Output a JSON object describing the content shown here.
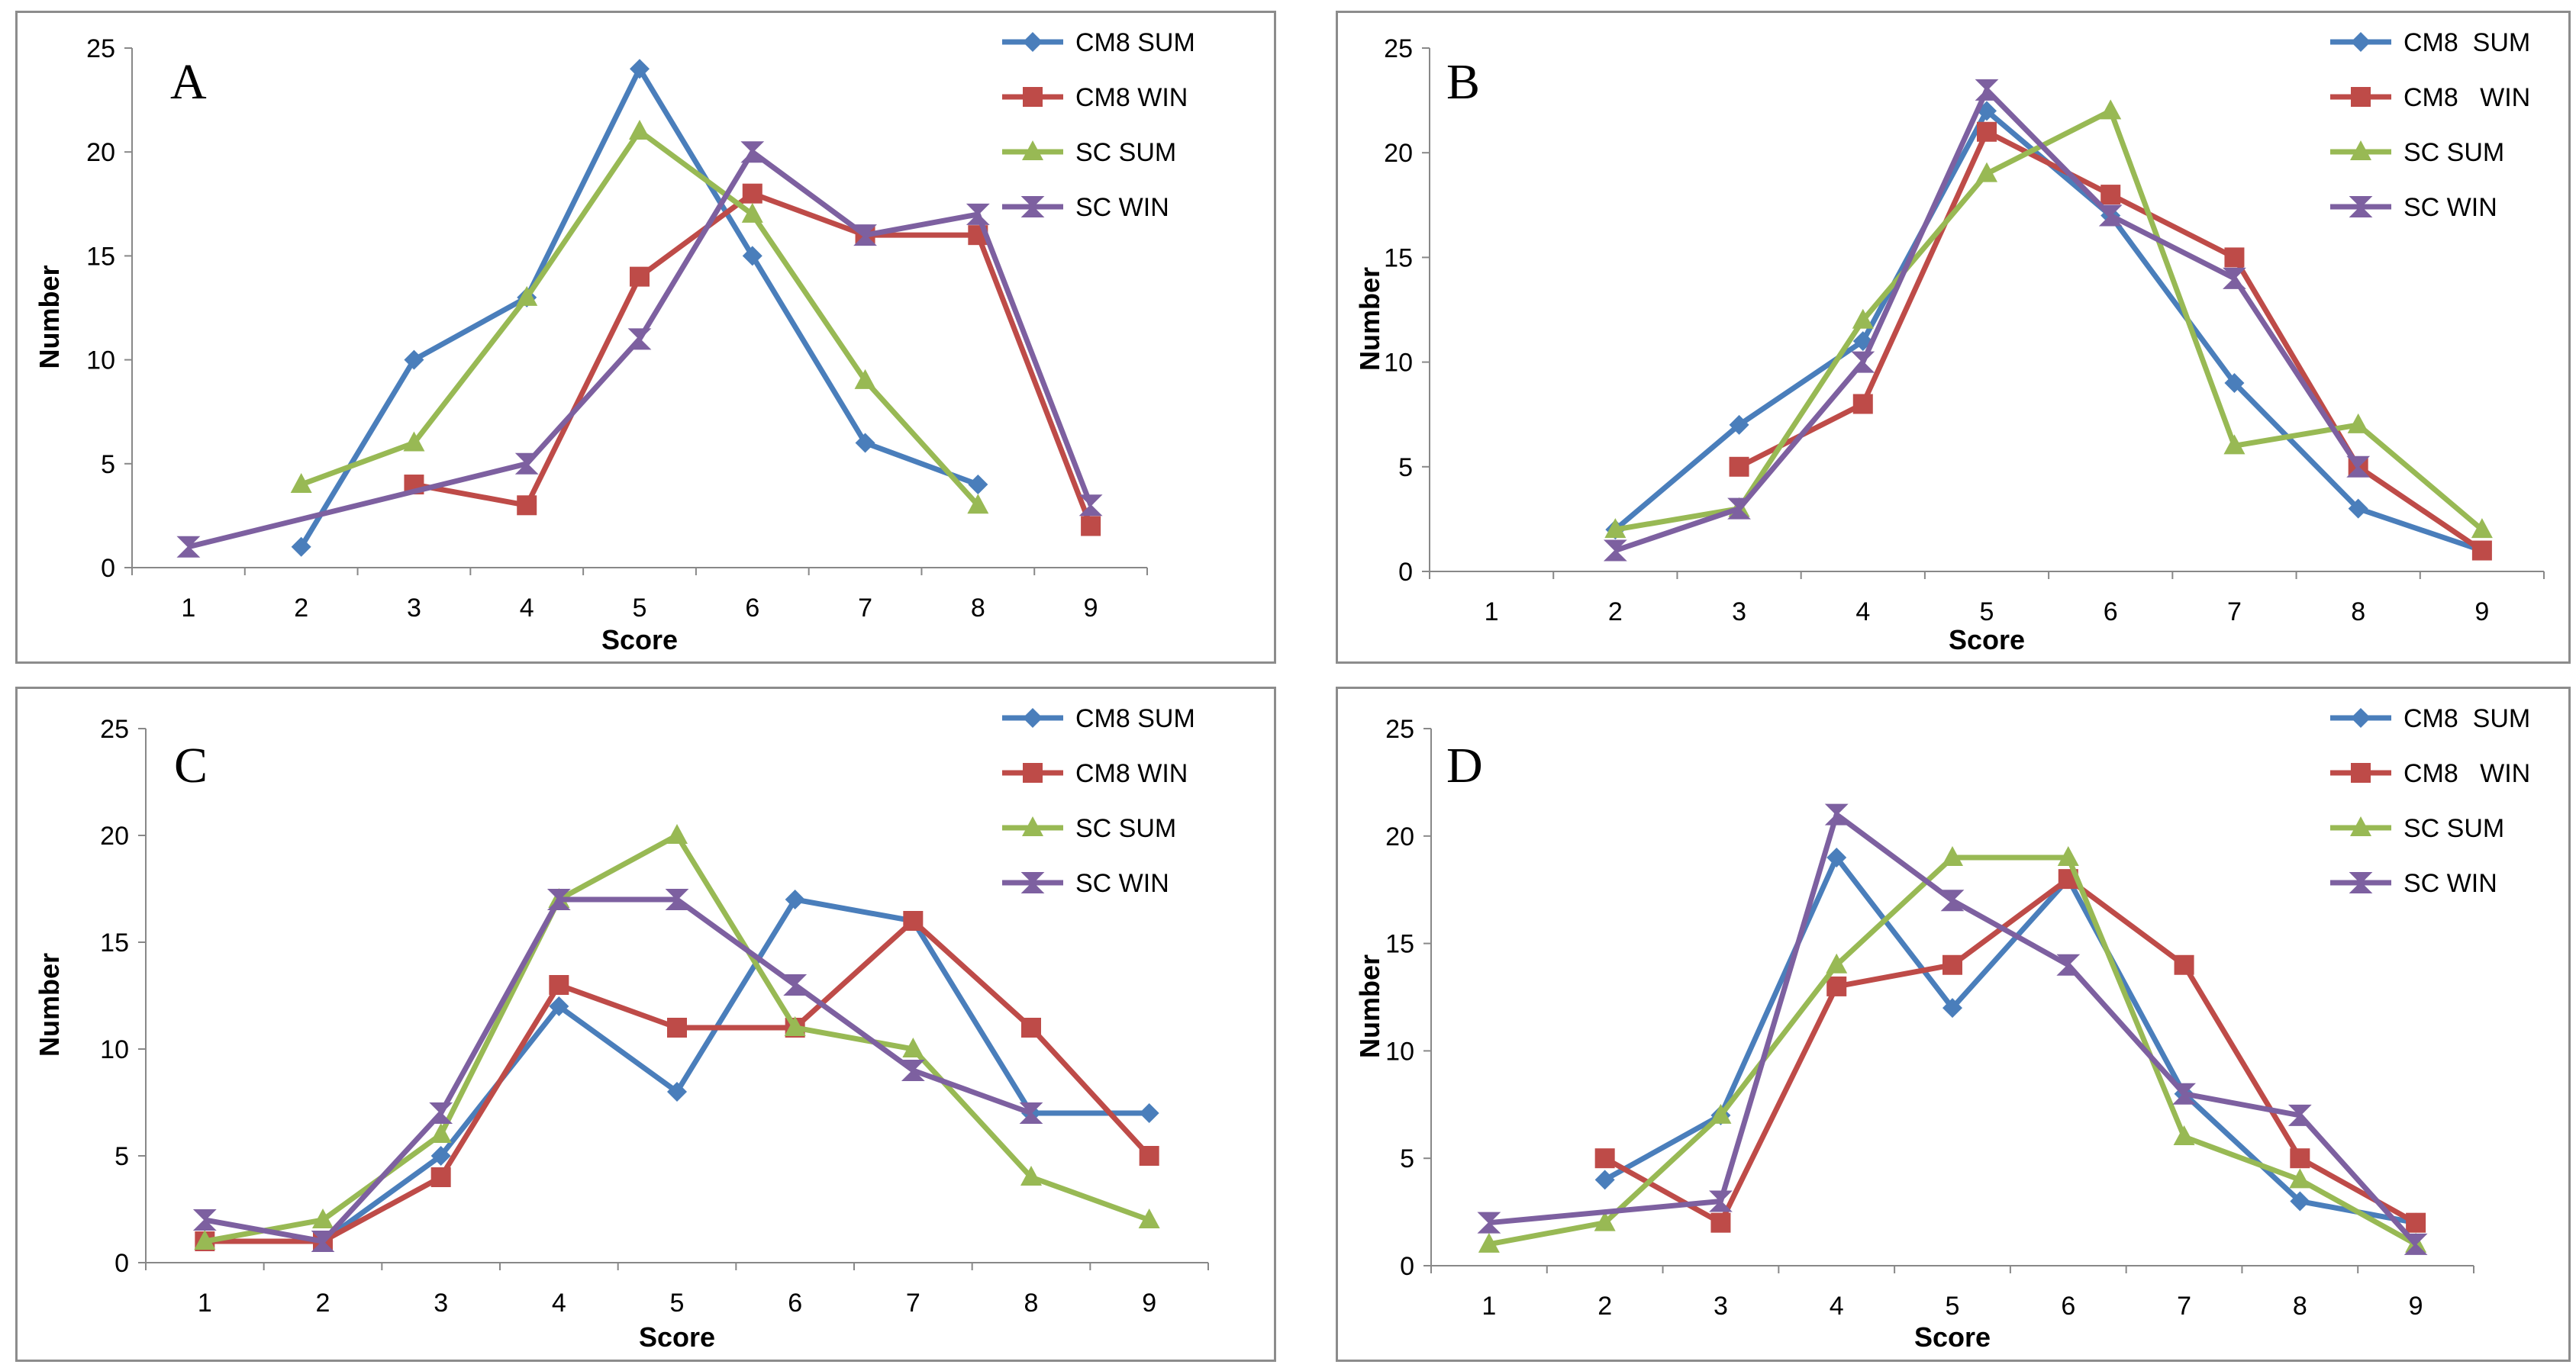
{
  "chart_data": [
    {
      "type": "line",
      "panel_label": "A",
      "xlabel": "Score",
      "ylabel": "Number",
      "ylim": [
        0,
        25
      ],
      "yticks": [
        0,
        5,
        10,
        15,
        20,
        25
      ],
      "categories": [
        "1",
        "2",
        "3",
        "4",
        "5",
        "6",
        "7",
        "8",
        "9"
      ],
      "legend_position": "top-right",
      "series": [
        {
          "name": "CM8 SUM",
          "color": "#4a7ebb",
          "marker": "diamond",
          "points": [
            {
              "x": 2,
              "y": 1
            },
            {
              "x": 3,
              "y": 10
            },
            {
              "x": 4,
              "y": 13
            },
            {
              "x": 5,
              "y": 24
            },
            {
              "x": 6,
              "y": 15
            },
            {
              "x": 7,
              "y": 6
            },
            {
              "x": 8,
              "y": 4
            }
          ]
        },
        {
          "name": "CM8 WIN",
          "color": "#be4b48",
          "marker": "square",
          "points": [
            {
              "x": 3,
              "y": 4
            },
            {
              "x": 4,
              "y": 3
            },
            {
              "x": 5,
              "y": 14
            },
            {
              "x": 6,
              "y": 18
            },
            {
              "x": 7,
              "y": 16
            },
            {
              "x": 8,
              "y": 16
            },
            {
              "x": 9,
              "y": 2
            }
          ]
        },
        {
          "name": "SC SUM",
          "color": "#98b954",
          "marker": "triangle",
          "points": [
            {
              "x": 2,
              "y": 4
            },
            {
              "x": 3,
              "y": 6
            },
            {
              "x": 4,
              "y": 13
            },
            {
              "x": 5,
              "y": 21
            },
            {
              "x": 6,
              "y": 17
            },
            {
              "x": 7,
              "y": 9
            },
            {
              "x": 8,
              "y": 3
            }
          ]
        },
        {
          "name": "SC WIN",
          "color": "#7d60a0",
          "marker": "hourglass",
          "points": [
            {
              "x": 1,
              "y": 1
            },
            {
              "x": 4,
              "y": 5
            },
            {
              "x": 5,
              "y": 11
            },
            {
              "x": 6,
              "y": 20
            },
            {
              "x": 7,
              "y": 16
            },
            {
              "x": 8,
              "y": 17
            },
            {
              "x": 9,
              "y": 3
            }
          ]
        }
      ]
    },
    {
      "type": "line",
      "panel_label": "B",
      "xlabel": "Score",
      "ylabel": "Number",
      "ylim": [
        0,
        25
      ],
      "yticks": [
        0,
        5,
        10,
        15,
        20,
        25
      ],
      "categories": [
        "1",
        "2",
        "3",
        "4",
        "5",
        "6",
        "7",
        "8",
        "9"
      ],
      "legend_position": "top-right",
      "series": [
        {
          "name": "CM8  SUM",
          "color": "#4a7ebb",
          "marker": "diamond",
          "points": [
            {
              "x": 2,
              "y": 2
            },
            {
              "x": 3,
              "y": 7
            },
            {
              "x": 4,
              "y": 11
            },
            {
              "x": 5,
              "y": 22
            },
            {
              "x": 6,
              "y": 17
            },
            {
              "x": 7,
              "y": 9
            },
            {
              "x": 8,
              "y": 3
            },
            {
              "x": 9,
              "y": 1
            }
          ]
        },
        {
          "name": "CM8   WIN",
          "color": "#be4b48",
          "marker": "square",
          "points": [
            {
              "x": 3,
              "y": 5
            },
            {
              "x": 4,
              "y": 8
            },
            {
              "x": 5,
              "y": 21
            },
            {
              "x": 6,
              "y": 18
            },
            {
              "x": 7,
              "y": 15
            },
            {
              "x": 8,
              "y": 5
            },
            {
              "x": 9,
              "y": 1
            }
          ]
        },
        {
          "name": "SC SUM",
          "color": "#98b954",
          "marker": "triangle",
          "points": [
            {
              "x": 2,
              "y": 2
            },
            {
              "x": 3,
              "y": 3
            },
            {
              "x": 4,
              "y": 12
            },
            {
              "x": 5,
              "y": 19
            },
            {
              "x": 6,
              "y": 22
            },
            {
              "x": 7,
              "y": 6
            },
            {
              "x": 8,
              "y": 7
            },
            {
              "x": 9,
              "y": 2
            }
          ]
        },
        {
          "name": "SC WIN",
          "color": "#7d60a0",
          "marker": "hourglass",
          "points": [
            {
              "x": 2,
              "y": 1
            },
            {
              "x": 3,
              "y": 3
            },
            {
              "x": 4,
              "y": 10
            },
            {
              "x": 5,
              "y": 23
            },
            {
              "x": 6,
              "y": 17
            },
            {
              "x": 7,
              "y": 14
            },
            {
              "x": 8,
              "y": 5
            }
          ]
        }
      ]
    },
    {
      "type": "line",
      "panel_label": "C",
      "xlabel": "Score",
      "ylabel": "Number",
      "ylim": [
        0,
        25
      ],
      "yticks": [
        0,
        5,
        10,
        15,
        20,
        25
      ],
      "categories": [
        "1",
        "2",
        "3",
        "4",
        "5",
        "6",
        "7",
        "8",
        "9"
      ],
      "legend_position": "top-right",
      "series": [
        {
          "name": "CM8 SUM",
          "color": "#4a7ebb",
          "marker": "diamond",
          "points": [
            {
              "x": 1,
              "y": 1
            },
            {
              "x": 2,
              "y": 1
            },
            {
              "x": 3,
              "y": 5
            },
            {
              "x": 4,
              "y": 12
            },
            {
              "x": 5,
              "y": 8
            },
            {
              "x": 6,
              "y": 17
            },
            {
              "x": 7,
              "y": 16
            },
            {
              "x": 8,
              "y": 7
            },
            {
              "x": 9,
              "y": 7
            }
          ]
        },
        {
          "name": "CM8 WIN",
          "color": "#be4b48",
          "marker": "square",
          "points": [
            {
              "x": 1,
              "y": 1
            },
            {
              "x": 2,
              "y": 1
            },
            {
              "x": 3,
              "y": 4
            },
            {
              "x": 4,
              "y": 13
            },
            {
              "x": 5,
              "y": 11
            },
            {
              "x": 6,
              "y": 11
            },
            {
              "x": 7,
              "y": 16
            },
            {
              "x": 8,
              "y": 11
            },
            {
              "x": 9,
              "y": 5
            }
          ]
        },
        {
          "name": "SC SUM",
          "color": "#98b954",
          "marker": "triangle",
          "points": [
            {
              "x": 1,
              "y": 1
            },
            {
              "x": 2,
              "y": 2
            },
            {
              "x": 3,
              "y": 6
            },
            {
              "x": 4,
              "y": 17
            },
            {
              "x": 5,
              "y": 20
            },
            {
              "x": 6,
              "y": 11
            },
            {
              "x": 7,
              "y": 10
            },
            {
              "x": 8,
              "y": 4
            },
            {
              "x": 9,
              "y": 2
            }
          ]
        },
        {
          "name": "SC WIN",
          "color": "#7d60a0",
          "marker": "hourglass",
          "points": [
            {
              "x": 1,
              "y": 2
            },
            {
              "x": 2,
              "y": 1
            },
            {
              "x": 3,
              "y": 7
            },
            {
              "x": 4,
              "y": 17
            },
            {
              "x": 5,
              "y": 17
            },
            {
              "x": 6,
              "y": 13
            },
            {
              "x": 7,
              "y": 9
            },
            {
              "x": 8,
              "y": 7
            }
          ]
        }
      ]
    },
    {
      "type": "line",
      "panel_label": "D",
      "xlabel": "Score",
      "ylabel": "Number",
      "ylim": [
        0,
        25
      ],
      "yticks": [
        0,
        5,
        10,
        15,
        20,
        25
      ],
      "categories": [
        "1",
        "2",
        "3",
        "4",
        "5",
        "6",
        "7",
        "8",
        "9"
      ],
      "legend_position": "top-right",
      "series": [
        {
          "name": "CM8  SUM",
          "color": "#4a7ebb",
          "marker": "diamond",
          "points": [
            {
              "x": 2,
              "y": 4
            },
            {
              "x": 3,
              "y": 7
            },
            {
              "x": 4,
              "y": 19
            },
            {
              "x": 5,
              "y": 12
            },
            {
              "x": 6,
              "y": 18
            },
            {
              "x": 7,
              "y": 8
            },
            {
              "x": 8,
              "y": 3
            },
            {
              "x": 9,
              "y": 2
            }
          ]
        },
        {
          "name": "CM8   WIN",
          "color": "#be4b48",
          "marker": "square",
          "points": [
            {
              "x": 2,
              "y": 5
            },
            {
              "x": 3,
              "y": 2
            },
            {
              "x": 4,
              "y": 13
            },
            {
              "x": 5,
              "y": 14
            },
            {
              "x": 6,
              "y": 18
            },
            {
              "x": 7,
              "y": 14
            },
            {
              "x": 8,
              "y": 5
            },
            {
              "x": 9,
              "y": 2
            }
          ]
        },
        {
          "name": "SC SUM",
          "color": "#98b954",
          "marker": "triangle",
          "points": [
            {
              "x": 1,
              "y": 1
            },
            {
              "x": 2,
              "y": 2
            },
            {
              "x": 3,
              "y": 7
            },
            {
              "x": 4,
              "y": 14
            },
            {
              "x": 5,
              "y": 19
            },
            {
              "x": 6,
              "y": 19
            },
            {
              "x": 7,
              "y": 6
            },
            {
              "x": 8,
              "y": 4
            },
            {
              "x": 9,
              "y": 1
            }
          ]
        },
        {
          "name": "SC WIN",
          "color": "#7d60a0",
          "marker": "hourglass",
          "points": [
            {
              "x": 1,
              "y": 2
            },
            {
              "x": 3,
              "y": 3
            },
            {
              "x": 4,
              "y": 21
            },
            {
              "x": 5,
              "y": 17
            },
            {
              "x": 6,
              "y": 14
            },
            {
              "x": 7,
              "y": 8
            },
            {
              "x": 8,
              "y": 7
            },
            {
              "x": 9,
              "y": 1
            }
          ]
        }
      ]
    }
  ]
}
